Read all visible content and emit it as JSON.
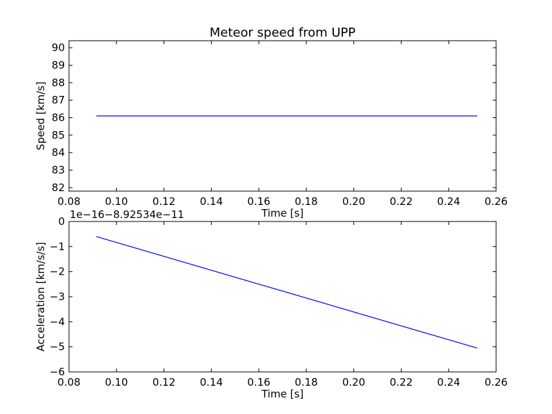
{
  "chart_data": [
    {
      "type": "line",
      "title": "Meteor speed from  UPP",
      "xlabel": "Time [s]",
      "ylabel": "Speed [km/s]",
      "xlim": [
        0.08,
        0.26
      ],
      "ylim": [
        81.8,
        90.4
      ],
      "xticks": [
        "0.08",
        "0.10",
        "0.12",
        "0.14",
        "0.16",
        "0.18",
        "0.20",
        "0.22",
        "0.24",
        "0.26"
      ],
      "yticks": [
        "82",
        "83",
        "84",
        "85",
        "86",
        "87",
        "88",
        "89",
        "90"
      ],
      "grid": false,
      "series": [
        {
          "color": "#0000ff",
          "x": [
            0.0915,
            0.252
          ],
          "y": [
            86.1,
            86.1
          ]
        }
      ]
    },
    {
      "type": "line",
      "title": "",
      "offset_text": "1e−16−8.92534e−11",
      "xlabel": "Time [s]",
      "ylabel": "Acceleration [km/s/s]",
      "xlim": [
        0.08,
        0.26
      ],
      "ylim": [
        -6,
        0
      ],
      "xticks": [
        "0.08",
        "0.10",
        "0.12",
        "0.14",
        "0.16",
        "0.18",
        "0.20",
        "0.22",
        "0.24",
        "0.26"
      ],
      "yticks": [
        "−6",
        "−5",
        "−4",
        "−3",
        "−2",
        "−1",
        "0"
      ],
      "grid": false,
      "series": [
        {
          "color": "#0000ff",
          "x": [
            0.0915,
            0.252
          ],
          "y": [
            -0.6,
            -5.05
          ]
        }
      ]
    }
  ]
}
